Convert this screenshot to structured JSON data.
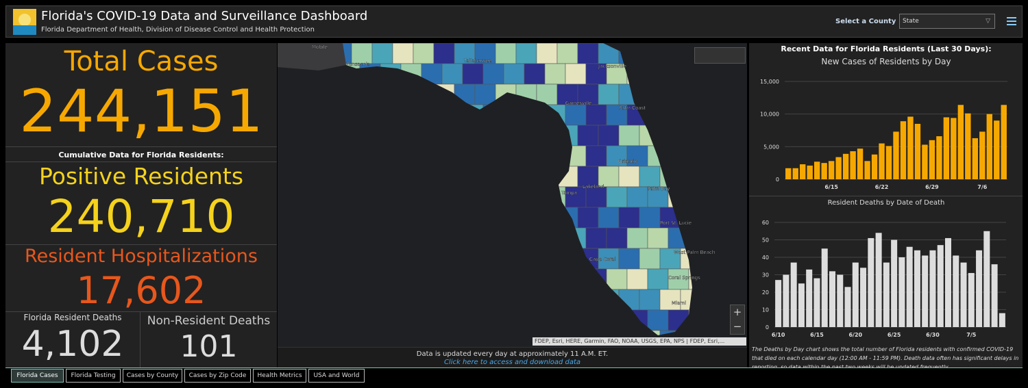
{
  "header": {
    "title": "Florida's COVID-19 Data and Surveillance Dashboard",
    "subtitle": "Florida Department of Health, Division of Disease Control and Health Protection",
    "select_label": "Select a County",
    "select_value": "State"
  },
  "summary": {
    "total_cases": {
      "label": "Total Cases",
      "value": "244,151"
    },
    "cumulative_heading": "Cumulative Data for Florida Residents:",
    "positive": {
      "label": "Positive Residents",
      "value": "240,710"
    },
    "hospitalizations": {
      "label": "Resident Hospitalizations",
      "value": "17,602"
    },
    "deaths": {
      "label": "Florida Resident Deaths",
      "value": "4,102"
    },
    "nonresident_deaths": {
      "label": "Non-Resident Deaths",
      "value": "101"
    }
  },
  "map": {
    "labels": [
      "Mobile",
      "Pensacola",
      "Tallahassee",
      "Jacksonville",
      "Gainesville",
      "Palm Coast",
      "Orlando",
      "Palm Bay",
      "Lakeland",
      "Tampa",
      "Port St. Lucie",
      "Cape Coral",
      "West Palm Beach",
      "Coral Springs",
      "Miami"
    ],
    "attribution": "FDEP, Esri, HERE, Garmin, FAO, NOAA, USGS, EPA, NPS | FDEP, Esri,...",
    "zoom_in": "+",
    "zoom_out": "−",
    "footer_text": "Data is updated every day at approximately 11 A.M. ET.",
    "footer_link": "Click here to access and download data"
  },
  "panel_heading": "Recent Data for Florida Residents (Last 30 Days):",
  "chart_data": [
    {
      "type": "bar",
      "title": "New Cases of Residents by Day",
      "categories": [
        null,
        null,
        null,
        null,
        null,
        null,
        "6/15",
        null,
        null,
        null,
        null,
        null,
        null,
        "6/22",
        null,
        null,
        null,
        null,
        null,
        null,
        "6/29",
        null,
        null,
        null,
        null,
        null,
        null,
        "7/6",
        null,
        null,
        null
      ],
      "series": [
        {
          "color": "#f7a800",
          "values": [
            1700,
            1700,
            2300,
            2100,
            2700,
            2500,
            2800,
            3400,
            3900,
            4300,
            4700,
            2800,
            3800,
            5500,
            5100,
            7300,
            8900,
            9600,
            8500,
            5300,
            6000,
            6600,
            9500,
            9400,
            11400,
            10100,
            6300,
            7300,
            10000,
            9000,
            11400
          ]
        }
      ],
      "ylim": [
        0,
        15000
      ],
      "yticks": [
        0,
        {
          "value": 5000,
          "label": "5,000"
        },
        {
          "value": 10000,
          "label": "10,000"
        },
        {
          "value": 15000,
          "label": "15,000"
        }
      ],
      "grid": true
    },
    {
      "type": "bar",
      "title": "Resident Deaths by Date of Death",
      "categories": [
        "6/10",
        null,
        null,
        null,
        null,
        "6/15",
        null,
        null,
        null,
        null,
        "6/20",
        null,
        null,
        null,
        null,
        "6/25",
        null,
        null,
        null,
        null,
        "6/30",
        null,
        null,
        null,
        null,
        "7/5",
        null,
        null,
        null,
        null
      ],
      "series": [
        {
          "color": "#dddddd",
          "values": [
            27,
            30,
            37,
            25,
            33,
            28,
            45,
            32,
            30,
            23,
            37,
            34,
            51,
            54,
            37,
            50,
            40,
            46,
            44,
            41,
            44,
            47,
            51,
            41,
            37,
            31,
            44,
            55,
            36,
            8
          ]
        }
      ],
      "ylim": [
        0,
        60
      ],
      "yticks": [
        0,
        10,
        20,
        30,
        40,
        50,
        60
      ],
      "grid": true
    }
  ],
  "note": "The Deaths by Day chart shows the total number of Florida residents with confirmed COVID-19 that died on each calendar day (12:00 AM - 11:59 PM). Death data often has significant delays in reporting, so data within the past two weeks will be updated frequently.",
  "tabs": [
    "Florida Cases",
    "Florida Testing",
    "Cases by County",
    "Cases by Zip Code",
    "Health Metrics",
    "USA and World"
  ]
}
